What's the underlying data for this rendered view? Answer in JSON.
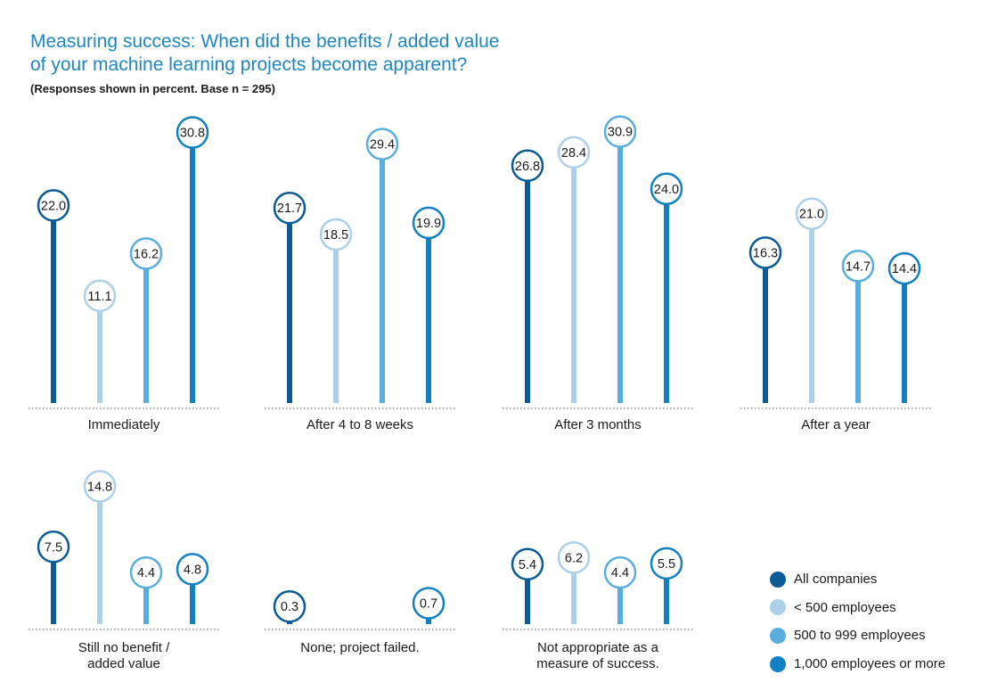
{
  "title_line1": "Measuring success: When did the benefits / added value",
  "title_line2": "of your machine learning projects become apparent?",
  "subtitle": "(Responses shown in percent. Base n = 295)",
  "chart_data": {
    "type": "bar",
    "style": "lollipop",
    "title": "Measuring success: When did the benefits / added value of your machine learning projects become apparent?",
    "subtitle": "(Responses shown in percent. Base n = 295)",
    "unit": "percent",
    "categories": [
      [
        "Immediately"
      ],
      [
        "After 4 to 8 weeks"
      ],
      [
        "After 3 months"
      ],
      [
        "After a year"
      ],
      [
        "Still no benefit /",
        "added value"
      ],
      [
        "None; project failed."
      ],
      [
        "Not appropriate as a",
        "measure of success."
      ]
    ],
    "series": [
      {
        "name": "All companies",
        "color": "#0b5c96",
        "values": [
          22.0,
          21.7,
          26.8,
          16.3,
          7.5,
          0.3,
          5.4
        ]
      },
      {
        "name": "< 500 employees",
        "color": "#acd0ea",
        "values": [
          11.1,
          18.5,
          28.4,
          21.0,
          14.8,
          null,
          6.2
        ]
      },
      {
        "name": "500 to 999 employees",
        "color": "#5aaedd",
        "values": [
          16.2,
          29.4,
          30.9,
          14.7,
          4.4,
          null,
          4.4
        ]
      },
      {
        "name": "1,000 employees or more",
        "color": "#1181c3",
        "values": [
          30.8,
          19.9,
          24.0,
          14.4,
          4.8,
          0.7,
          5.5
        ]
      }
    ],
    "ylim": [
      0,
      35
    ],
    "legend": "bottom-right"
  }
}
